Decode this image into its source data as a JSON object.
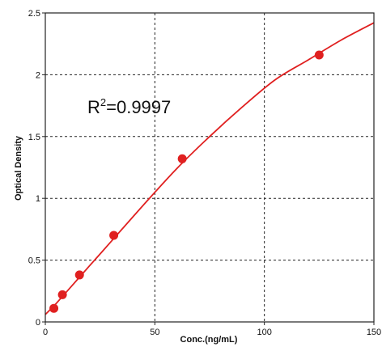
{
  "chart_data": {
    "type": "scatter",
    "title": "",
    "xlabel": "Conc.(ng/mL)",
    "ylabel": "Optical Density",
    "xlim": [
      0,
      150
    ],
    "ylim": [
      0,
      2.5
    ],
    "xticks": [
      0,
      50,
      100,
      150
    ],
    "yticks": [
      0,
      0.5,
      1,
      1.5,
      2,
      2.5
    ],
    "xtick_labels": [
      "0",
      "50",
      "100",
      "150"
    ],
    "ytick_labels": [
      "0",
      "0.5",
      "1",
      "1.5",
      "2",
      "2.5"
    ],
    "grid": true,
    "series": [
      {
        "x": [
          3.9,
          7.8,
          15.6,
          31.25,
          62.5,
          125
        ],
        "y": [
          0.11,
          0.22,
          0.38,
          0.7,
          1.32,
          2.16
        ]
      }
    ],
    "fit_curve": {
      "x": [
        0,
        5,
        10,
        20,
        30,
        45,
        60,
        75,
        90,
        105,
        120,
        135,
        150
      ],
      "y": [
        0.06,
        0.15,
        0.25,
        0.45,
        0.65,
        0.95,
        1.24,
        1.5,
        1.74,
        1.96,
        2.12,
        2.28,
        2.42
      ]
    },
    "annotation": {
      "prefix": "R",
      "superscript": "2",
      "suffix": "=0.9997"
    },
    "colors": {
      "series": "#e02020",
      "grid": "#222222",
      "axis": "#222222"
    }
  }
}
